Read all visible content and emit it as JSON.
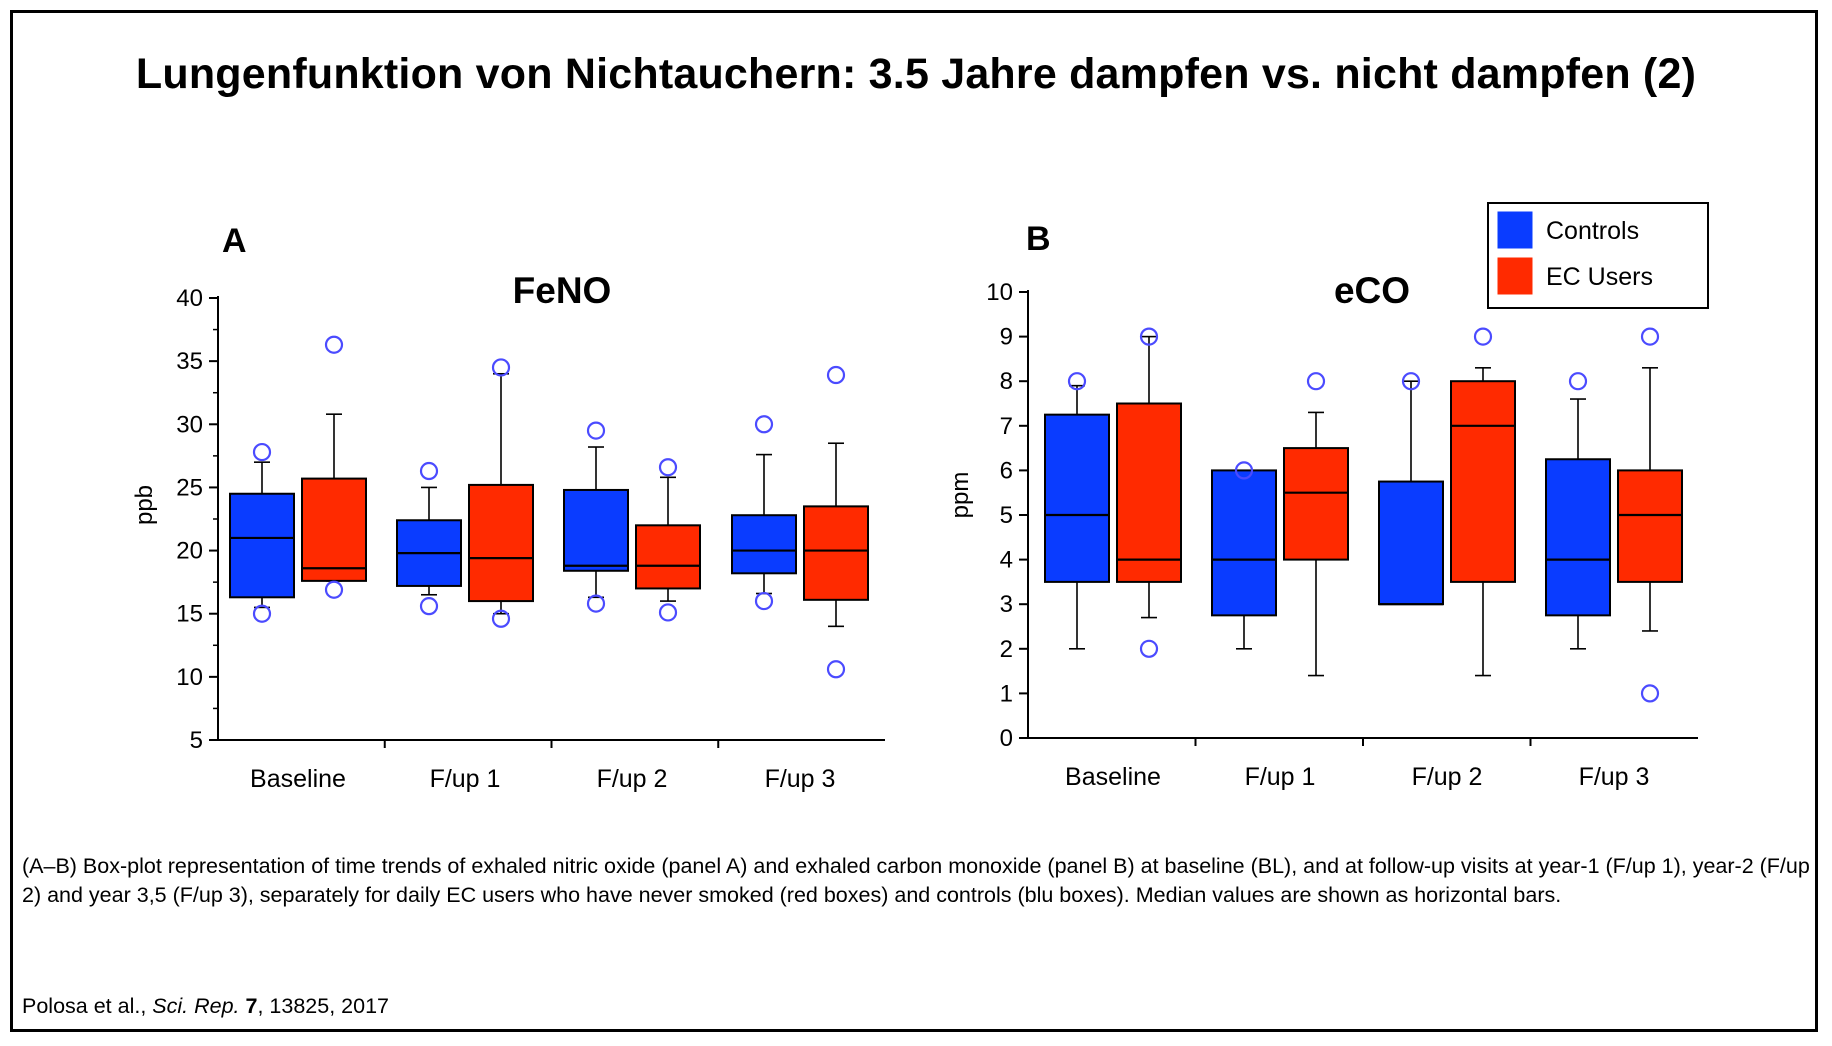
{
  "slide": {
    "title": "Lungenfunktion von Nichtauchern: 3.5 Jahre dampfen vs. nicht dampfen (2)",
    "caption": "(A–B) Box-plot representation of time trends of exhaled nitric oxide (panel A) and exhaled carbon monoxide (panel B) at baseline (BL), and at follow-up visits at year-1 (F/up 1), year-2 (F/up 2) and year 3,5 (F/up 3), separately for daily EC users who have never smoked (red boxes) and controls (blu boxes). Median values are shown as horizontal bars.",
    "citation": {
      "authors": "Polosa et al.,",
      "journal": "Sci. Rep.",
      "volume": "7",
      "pages_year": ", 13825, 2017"
    }
  },
  "legend": {
    "placement": "top-right of panel B",
    "items": [
      {
        "label": "Controls",
        "color": "#0a3cff"
      },
      {
        "label": "EC Users",
        "color": "#ff2a00"
      }
    ]
  },
  "colors": {
    "controls": "#0a3cff",
    "ec_users": "#ff2a00",
    "outlier": "#4b4bff"
  },
  "chart_data": [
    {
      "type": "boxplot",
      "panel": "A",
      "title": "FeNO",
      "ylabel": "ppb",
      "xlabel": "",
      "ylim": [
        5,
        40
      ],
      "yticks": [
        5,
        10,
        15,
        20,
        25,
        30,
        35,
        40
      ],
      "categories": [
        "Baseline",
        "F/up 1",
        "F/up 2",
        "F/up 3"
      ],
      "series": [
        {
          "name": "Controls",
          "color": "#0a3cff",
          "boxes": [
            {
              "whisker_low": 15.5,
              "q1": 16.3,
              "median": 21.0,
              "q3": 24.5,
              "whisker_high": 27.0,
              "outliers": [
                15.0,
                27.8
              ]
            },
            {
              "whisker_low": 16.5,
              "q1": 17.2,
              "median": 19.8,
              "q3": 22.4,
              "whisker_high": 25.0,
              "outliers": [
                15.6,
                26.3
              ]
            },
            {
              "whisker_low": 16.3,
              "q1": 18.4,
              "median": 18.8,
              "q3": 24.8,
              "whisker_high": 28.2,
              "outliers": [
                15.8,
                29.5
              ]
            },
            {
              "whisker_low": 16.6,
              "q1": 18.2,
              "median": 20.0,
              "q3": 22.8,
              "whisker_high": 27.6,
              "outliers": [
                16.0,
                30.0
              ]
            }
          ]
        },
        {
          "name": "EC Users",
          "color": "#ff2a00",
          "boxes": [
            {
              "whisker_low": 17.6,
              "q1": 17.6,
              "median": 18.6,
              "q3": 25.7,
              "whisker_high": 30.8,
              "outliers": [
                16.9,
                36.3
              ]
            },
            {
              "whisker_low": 15.0,
              "q1": 16.0,
              "median": 19.4,
              "q3": 25.2,
              "whisker_high": 34.0,
              "outliers": [
                14.6,
                34.5
              ]
            },
            {
              "whisker_low": 16.0,
              "q1": 17.0,
              "median": 18.8,
              "q3": 22.0,
              "whisker_high": 25.8,
              "outliers": [
                15.1,
                26.6
              ]
            },
            {
              "whisker_low": 14.0,
              "q1": 16.1,
              "median": 20.0,
              "q3": 23.5,
              "whisker_high": 28.5,
              "outliers": [
                10.6,
                33.9
              ]
            }
          ]
        }
      ]
    },
    {
      "type": "boxplot",
      "panel": "B",
      "title": "eCO",
      "ylabel": "ppm",
      "xlabel": "",
      "ylim": [
        0,
        10
      ],
      "yticks": [
        0,
        1,
        2,
        3,
        4,
        5,
        6,
        7,
        8,
        9,
        10
      ],
      "categories": [
        "Baseline",
        "F/up 1",
        "F/up 2",
        "F/up 3"
      ],
      "series": [
        {
          "name": "Controls",
          "color": "#0a3cff",
          "boxes": [
            {
              "whisker_low": 2.0,
              "q1": 3.5,
              "median": 5.0,
              "q3": 7.25,
              "whisker_high": 7.9,
              "outliers": [
                8.0
              ]
            },
            {
              "whisker_low": 2.0,
              "q1": 2.75,
              "median": 4.0,
              "q3": 6.0,
              "whisker_high": 6.0,
              "outliers": [
                6.0
              ]
            },
            {
              "whisker_low": 3.0,
              "q1": 3.0,
              "median": 3.0,
              "q3": 5.75,
              "whisker_high": 8.0,
              "outliers": [
                8.0
              ]
            },
            {
              "whisker_low": 2.0,
              "q1": 2.75,
              "median": 4.0,
              "q3": 6.25,
              "whisker_high": 7.6,
              "outliers": [
                8.0
              ]
            }
          ]
        },
        {
          "name": "EC Users",
          "color": "#ff2a00",
          "boxes": [
            {
              "whisker_low": 2.7,
              "q1": 3.5,
              "median": 4.0,
              "q3": 7.5,
              "whisker_high": 9.0,
              "outliers": [
                2.0,
                9.0
              ]
            },
            {
              "whisker_low": 1.4,
              "q1": 4.0,
              "median": 5.5,
              "q3": 6.5,
              "whisker_high": 7.3,
              "outliers": [
                8.0
              ]
            },
            {
              "whisker_low": 1.4,
              "q1": 3.5,
              "median": 7.0,
              "q3": 8.0,
              "whisker_high": 8.3,
              "outliers": [
                9.0
              ]
            },
            {
              "whisker_low": 2.4,
              "q1": 3.5,
              "median": 5.0,
              "q3": 6.0,
              "whisker_high": 8.3,
              "outliers": [
                1.0,
                9.0
              ]
            }
          ]
        }
      ]
    }
  ]
}
